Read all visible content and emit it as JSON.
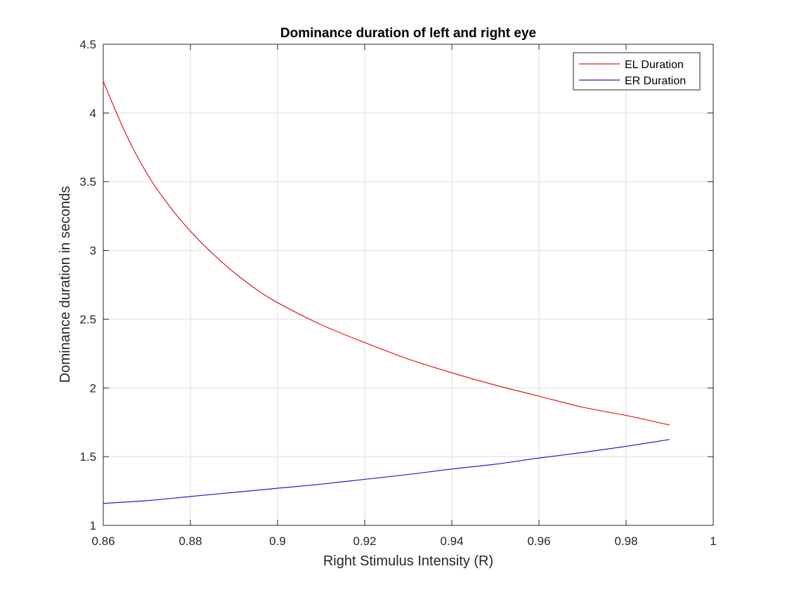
{
  "chart_data": {
    "type": "line",
    "title": "Dominance duration of left and right eye",
    "xlabel": "Right Stimulus Intensity (R)",
    "ylabel": "Dominance duration in seconds",
    "xlim": [
      0.86,
      1.0
    ],
    "ylim": [
      1.0,
      4.5
    ],
    "xticks": [
      0.86,
      0.88,
      0.9,
      0.92,
      0.94,
      0.96,
      0.98,
      1
    ],
    "xtick_labels": [
      "0.86",
      "0.88",
      "0.9",
      "0.92",
      "0.94",
      "0.96",
      "0.98",
      "1"
    ],
    "yticks": [
      1,
      1.5,
      2,
      2.5,
      3,
      3.5,
      4,
      4.5
    ],
    "ytick_labels": [
      "1",
      "1.5",
      "2",
      "2.5",
      "3",
      "3.5",
      "4",
      "4.5"
    ],
    "grid": true,
    "legend_position": "top-right",
    "series": [
      {
        "name": "EL Duration",
        "color": "#e41a1c",
        "x": [
          0.86,
          0.865,
          0.87,
          0.875,
          0.88,
          0.885,
          0.89,
          0.895,
          0.9,
          0.91,
          0.92,
          0.93,
          0.94,
          0.95,
          0.96,
          0.97,
          0.98,
          0.99
        ],
        "y": [
          4.23,
          3.86,
          3.56,
          3.33,
          3.14,
          2.98,
          2.84,
          2.72,
          2.62,
          2.46,
          2.33,
          2.21,
          2.11,
          2.02,
          1.94,
          1.86,
          1.8,
          1.73
        ]
      },
      {
        "name": "ER Duration",
        "color": "#1f1fcc",
        "x": [
          0.86,
          0.87,
          0.88,
          0.89,
          0.9,
          0.91,
          0.92,
          0.93,
          0.94,
          0.95,
          0.96,
          0.97,
          0.98,
          0.99
        ],
        "y": [
          1.16,
          1.18,
          1.21,
          1.24,
          1.27,
          1.3,
          1.335,
          1.37,
          1.41,
          1.445,
          1.49,
          1.53,
          1.575,
          1.625
        ]
      }
    ]
  }
}
